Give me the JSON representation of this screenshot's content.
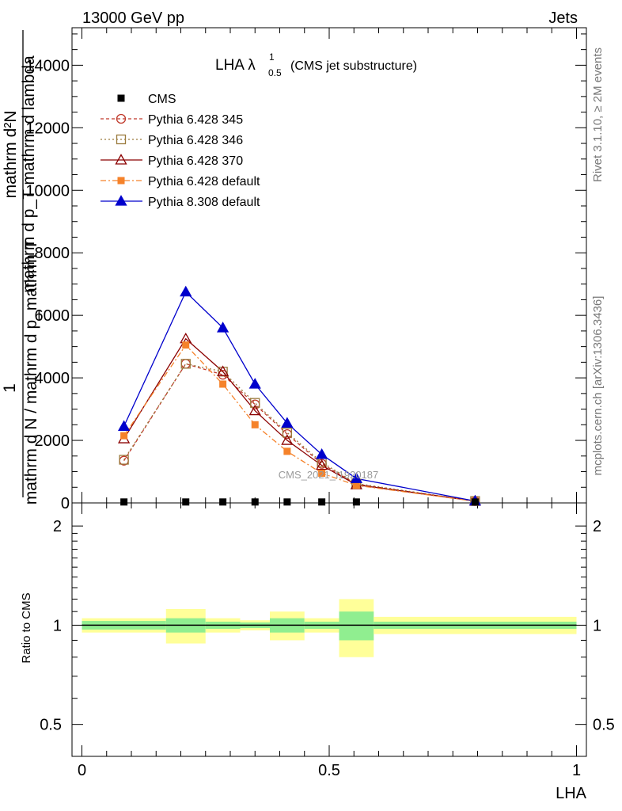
{
  "header": {
    "left": "13000 GeV pp",
    "right": "Jets"
  },
  "side": {
    "rivet": "Rivet 3.1.10, ≥ 2M events",
    "mcplots": "mcplots.cern.ch [arXiv:1306.3436]"
  },
  "watermark": "CMS_2021_I1920187",
  "chart_data": {
    "type": "line",
    "title": {
      "main": "LHA λ",
      "sup": "1",
      "sub": "0.5",
      "note": "(CMS jet substructure)"
    },
    "xlabel": "LHA",
    "ylabel_main": {
      "lead": "1",
      "denominator": "mathrm d N / mathrm d p_mathrm T",
      "numerator_top": "mathrm d²N",
      "numerator_bottom": "mathrm d p_T mathrm d lambda"
    },
    "ylabel_ratio": "Ratio to CMS",
    "xlim": [
      -0.02,
      1.02
    ],
    "ylim_main": [
      0,
      15200
    ],
    "ylim_ratio": [
      0.4,
      2.35
    ],
    "ratio_scale": "log",
    "x_ticks": [
      {
        "v": 0,
        "label": "0"
      },
      {
        "v": 0.5,
        "label": "0.5"
      },
      {
        "v": 1,
        "label": "1"
      }
    ],
    "y_ticks_main": [
      {
        "v": 0,
        "label": "0"
      },
      {
        "v": 2000,
        "label": "2000"
      },
      {
        "v": 4000,
        "label": "4000"
      },
      {
        "v": 6000,
        "label": "6000"
      },
      {
        "v": 8000,
        "label": "8000"
      },
      {
        "v": 10000,
        "label": "10000"
      },
      {
        "v": 12000,
        "label": "12000"
      },
      {
        "v": 14000,
        "label": "14000"
      }
    ],
    "y_ticks_ratio": [
      {
        "v": 0.5,
        "label": "0.5"
      },
      {
        "v": 1,
        "label": "1"
      },
      {
        "v": 2,
        "label": "2"
      }
    ],
    "bins": [
      {
        "lo": 0.0,
        "hi": 0.17,
        "x": 0.085
      },
      {
        "lo": 0.17,
        "hi": 0.25,
        "x": 0.21
      },
      {
        "lo": 0.25,
        "hi": 0.32,
        "x": 0.285
      },
      {
        "lo": 0.32,
        "hi": 0.38,
        "x": 0.35
      },
      {
        "lo": 0.38,
        "hi": 0.45,
        "x": 0.415
      },
      {
        "lo": 0.45,
        "hi": 0.52,
        "x": 0.485
      },
      {
        "lo": 0.52,
        "hi": 0.59,
        "x": 0.555
      },
      {
        "lo": 0.59,
        "hi": 1.0,
        "x": 0.795
      }
    ],
    "data": {
      "name": "CMS",
      "values": [
        30,
        30,
        30,
        30,
        30,
        30,
        30,
        30
      ],
      "band_inner": [
        0.03,
        0.05,
        0.025,
        0.02,
        0.05,
        0.025,
        0.1,
        0.025
      ],
      "band_outer": [
        0.05,
        0.12,
        0.05,
        0.035,
        0.1,
        0.05,
        0.2,
        0.06
      ]
    },
    "series": [
      {
        "name": "Pythia 6.428 345",
        "color": "#c0392b",
        "marker": "circle-open",
        "dash": "4,3",
        "values": [
          1350,
          4450,
          4100,
          3150,
          2200,
          1250,
          600,
          60
        ]
      },
      {
        "name": "Pythia 6.428 346",
        "color": "#9a7a3c",
        "marker": "square-open",
        "dash": "2,3",
        "values": [
          1380,
          4450,
          4200,
          3200,
          2250,
          1300,
          620,
          60
        ]
      },
      {
        "name": "Pythia 6.428 370",
        "color": "#8b0000",
        "marker": "triangle-open",
        "dash": "",
        "values": [
          2050,
          5250,
          4200,
          2950,
          2000,
          1200,
          580,
          60
        ]
      },
      {
        "name": "Pythia 6.428 default",
        "color": "#f5822a",
        "marker": "square-filled",
        "dash": "7,3,2,3",
        "values": [
          2150,
          5050,
          3800,
          2500,
          1650,
          950,
          560,
          55
        ]
      },
      {
        "name": "Pythia 8.308 default",
        "color": "#0000cc",
        "marker": "triangle-filled",
        "dash": "",
        "values": [
          2450,
          6750,
          5600,
          3800,
          2550,
          1550,
          780,
          60
        ]
      }
    ],
    "colors": {
      "band_inner": "#90ee90",
      "band_outer": "#ffff99"
    }
  }
}
